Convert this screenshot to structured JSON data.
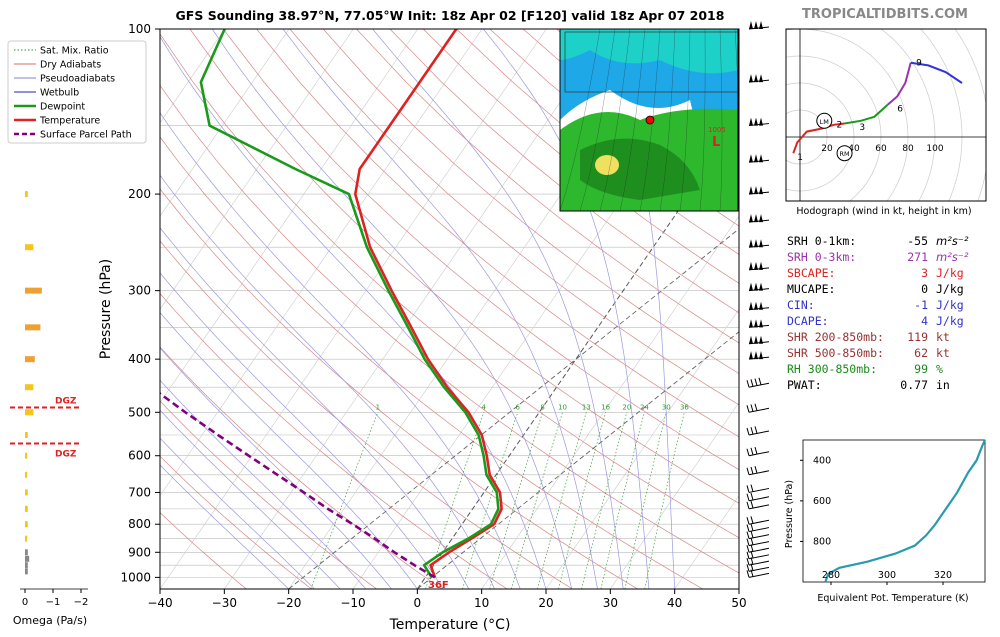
{
  "title": "GFS Sounding 38.97°N, 77.05°W Init: 18z Apr 02 [F120] valid 18z Apr 07 2018",
  "watermark": "TROPICALTIDBITS.COM",
  "legend": [
    {
      "label": "Sat. Mix. Ratio",
      "color": "#2a9a2a",
      "style": "dotted"
    },
    {
      "label": "Dry Adiabats",
      "color": "#d07070",
      "style": "solid"
    },
    {
      "label": "Pseudoadiabats",
      "color": "#8080d0",
      "style": "solid"
    },
    {
      "label": "Wetbulb",
      "color": "#2020c0",
      "style": "solid"
    },
    {
      "label": "Dewpoint",
      "color": "#1a9a1a",
      "style": "thick"
    },
    {
      "label": "Temperature",
      "color": "#dd2222",
      "style": "thick"
    },
    {
      "label": "Surface Parcel Path",
      "color": "#800080",
      "style": "dashed"
    }
  ],
  "axes": {
    "xlabel": "Temperature (°C)",
    "ylabel": "Pressure (hPa)",
    "xticks": [
      "−40",
      "−30",
      "−20",
      "−10",
      "0",
      "10",
      "20",
      "30",
      "40",
      "50"
    ],
    "yticks": [
      "100",
      "200",
      "300",
      "400",
      "500",
      "600",
      "700",
      "800",
      "900",
      "1000"
    ]
  },
  "mix_ratio_labels": [
    "1",
    "4",
    "6",
    "8",
    "10",
    "13",
    "16",
    "20",
    "24",
    "30",
    "36"
  ],
  "surface_temp_label": "36F",
  "omega": {
    "xlabel": "Omega (Pa/s)",
    "xticks": [
      "0",
      "−1",
      "−2"
    ],
    "dgz_label": "DGZ"
  },
  "hodograph": {
    "caption": "Hodograph (wind in kt, height in km)",
    "ticks": [
      "20",
      "40",
      "60",
      "80",
      "100"
    ],
    "height_labels": [
      "1",
      "2",
      "3",
      "6",
      "9"
    ],
    "markers": [
      "LM",
      "RM"
    ]
  },
  "indices": [
    {
      "label": "SRH 0-1km:",
      "value": "-55",
      "unit": "m²s⁻²",
      "color": "#000000"
    },
    {
      "label": "SRH 0-3km:",
      "value": "271",
      "unit": "m²s⁻²",
      "color": "#9933aa"
    },
    {
      "label": "SBCAPE:",
      "value": "3",
      "unit": "J/kg",
      "color": "#dd2222"
    },
    {
      "label": "MUCAPE:",
      "value": "0",
      "unit": "J/kg",
      "color": "#000000"
    },
    {
      "label": "CIN:",
      "value": "-1",
      "unit": "J/kg",
      "color": "#3333cc"
    },
    {
      "label": "DCAPE:",
      "value": "4",
      "unit": "J/kg",
      "color": "#3333cc"
    },
    {
      "label": "SHR 200-850mb:",
      "value": "119",
      "unit": "kt",
      "color": "#993333"
    },
    {
      "label": "SHR 500-850mb:",
      "value": "62",
      "unit": "kt",
      "color": "#993333"
    },
    {
      "label": "RH 300-850mb:",
      "value": "99",
      "unit": "%",
      "color": "#1a8a1a"
    },
    {
      "label": "PWAT:",
      "value": "0.77",
      "unit": "in",
      "color": "#000000"
    }
  ],
  "theta_e": {
    "xlabel": "Equivalent Pot. Temperature (K)",
    "ylabel": "Pressure (hPa)",
    "xticks": [
      "280",
      "300",
      "320"
    ],
    "yticks": [
      "400",
      "600",
      "800"
    ]
  },
  "inset_map": {
    "low_label": "L",
    "low_value": "1005"
  },
  "chart_data": [
    {
      "type": "line",
      "title": "GFS Sounding 38.97°N, 77.05°W Init: 18z Apr 02 [F120] valid 18z Apr 07 2018",
      "xlabel": "Temperature (°C)",
      "ylabel": "Pressure (hPa)",
      "xlim": [
        -40,
        50
      ],
      "ylim": [
        1050,
        100
      ],
      "yscale": "log",
      "skew": true,
      "series": [
        {
          "name": "Temperature",
          "color": "#dd2222",
          "points": [
            [
              1.5,
              1000
            ],
            [
              -0.5,
              950
            ],
            [
              1,
              900
            ],
            [
              3,
              850
            ],
            [
              5,
              800
            ],
            [
              4.5,
              750
            ],
            [
              2.5,
              700
            ],
            [
              -1,
              650
            ],
            [
              -3.5,
              600
            ],
            [
              -6.5,
              550
            ],
            [
              -11,
              500
            ],
            [
              -17,
              450
            ],
            [
              -23,
              400
            ],
            [
              -29,
              350
            ],
            [
              -36,
              300
            ],
            [
              -44,
              250
            ],
            [
              -52,
              200
            ],
            [
              -54,
              180
            ],
            [
              -54,
              150
            ],
            [
              -54,
              125
            ],
            [
              -54,
              100
            ]
          ]
        },
        {
          "name": "Dewpoint",
          "color": "#1a9a1a",
          "points": [
            [
              1,
              1000
            ],
            [
              -1.5,
              950
            ],
            [
              0,
              900
            ],
            [
              2.5,
              850
            ],
            [
              4.5,
              800
            ],
            [
              4,
              750
            ],
            [
              2,
              700
            ],
            [
              -1.5,
              650
            ],
            [
              -4,
              600
            ],
            [
              -7,
              550
            ],
            [
              -11.5,
              500
            ],
            [
              -17.5,
              450
            ],
            [
              -23.5,
              400
            ],
            [
              -29.5,
              350
            ],
            [
              -36.5,
              300
            ],
            [
              -44.5,
              250
            ],
            [
              -53,
              200
            ],
            [
              -64,
              180
            ],
            [
              -82,
              150
            ],
            [
              -88,
              125
            ],
            [
              -90,
              100
            ]
          ]
        },
        {
          "name": "Surface Parcel Path",
          "color": "#800080",
          "points": [
            [
              1.5,
              1000
            ],
            [
              -3,
              950
            ],
            [
              -7.5,
              900
            ],
            [
              -12,
              850
            ],
            [
              -17,
              800
            ],
            [
              -22.5,
              750
            ],
            [
              -28,
              700
            ],
            [
              -34,
              650
            ],
            [
              -40.5,
              600
            ],
            [
              -47.5,
              550
            ],
            [
              -55,
              500
            ],
            [
              -63,
              450
            ],
            [
              -72,
              400
            ]
          ]
        }
      ]
    },
    {
      "type": "bar",
      "xlabel": "Omega (Pa/s)",
      "xlim": [
        0.2,
        -2.2
      ],
      "categories": [
        975,
        950,
        925,
        900,
        850,
        800,
        750,
        700,
        650,
        600,
        550,
        500,
        450,
        400,
        350,
        300,
        250,
        200
      ],
      "values": [
        -0.1,
        -0.1,
        -0.15,
        -0.1,
        -0.05,
        -0.1,
        -0.1,
        -0.1,
        -0.05,
        -0.02,
        -0.1,
        -0.3,
        -0.3,
        -0.35,
        -0.55,
        -0.6,
        -0.3,
        -0.1
      ]
    },
    {
      "type": "line",
      "title": "Hodograph (wind in kt, height in km)",
      "xlim": [
        -5,
        120
      ],
      "ylim": [
        -15,
        65
      ],
      "series": [
        {
          "name": "0-1 km",
          "color": "#dd2222",
          "points": [
            [
              -5,
              -12
            ],
            [
              -2,
              -4
            ],
            [
              5,
              4
            ],
            [
              15,
              6
            ]
          ]
        },
        {
          "name": "1-3 km",
          "color": "#dd2222",
          "points": [
            [
              15,
              6
            ],
            [
              25,
              9
            ],
            [
              33,
              10
            ]
          ]
        },
        {
          "name": "3-6 km",
          "color": "#1a9a1a",
          "points": [
            [
              33,
              10
            ],
            [
              45,
              12
            ],
            [
              55,
              15
            ],
            [
              65,
              24
            ]
          ]
        },
        {
          "name": "6-9 km",
          "color": "#9933aa",
          "points": [
            [
              65,
              24
            ],
            [
              72,
              30
            ],
            [
              78,
              40
            ],
            [
              82,
              55
            ]
          ]
        },
        {
          "name": "9+ km",
          "color": "#3333dd",
          "points": [
            [
              82,
              55
            ],
            [
              95,
              53
            ],
            [
              108,
              48
            ],
            [
              120,
              40
            ]
          ]
        }
      ]
    },
    {
      "type": "line",
      "xlabel": "Equivalent Pot. Temperature (K)",
      "ylabel": "Pressure (hPa)",
      "xlim": [
        270,
        335
      ],
      "ylim": [
        1000,
        300
      ],
      "series": [
        {
          "name": "θe",
          "color": "#2a9ab0",
          "points": [
            [
              278,
              1000
            ],
            [
              279,
              960
            ],
            [
              283,
              930
            ],
            [
              293,
              900
            ],
            [
              303,
              860
            ],
            [
              310,
              820
            ],
            [
              314,
              770
            ],
            [
              317,
              720
            ],
            [
              320,
              660
            ],
            [
              323,
              600
            ],
            [
              325,
              560
            ],
            [
              327,
              510
            ],
            [
              329,
              460
            ],
            [
              332,
              400
            ],
            [
              334,
              330
            ],
            [
              335,
              300
            ]
          ]
        }
      ]
    }
  ]
}
